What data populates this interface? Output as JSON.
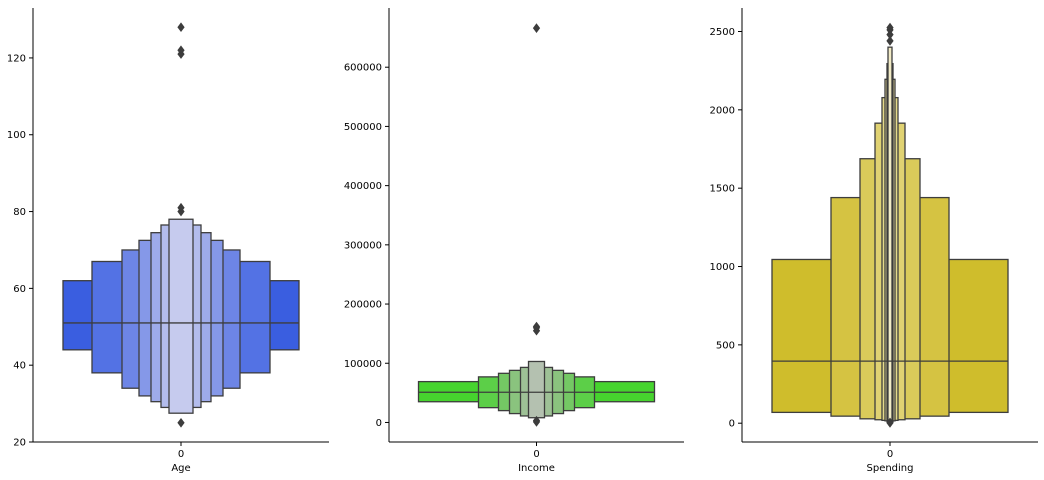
{
  "chart_data": [
    {
      "type": "boxen",
      "xlabel": "Age",
      "categories": [
        "0"
      ],
      "ylim": [
        20,
        133
      ],
      "yticks": [
        20,
        40,
        60,
        80,
        100,
        120
      ],
      "ytick_labels": [
        "20",
        "40",
        "60",
        "80",
        "100",
        "120"
      ],
      "color": "#3050f0",
      "median": 51,
      "boxes": [
        {
          "low": 44,
          "high": 62,
          "fill": "#3a5ee0"
        },
        {
          "low": 38,
          "high": 67,
          "fill": "#5372e4"
        },
        {
          "low": 34,
          "high": 70,
          "fill": "#6d85e6"
        },
        {
          "low": 32,
          "high": 72.5,
          "fill": "#8598e8"
        },
        {
          "low": 30.5,
          "high": 74.5,
          "fill": "#9eabea"
        },
        {
          "low": 29,
          "high": 76.5,
          "fill": "#b3bcec"
        },
        {
          "low": 27.5,
          "high": 78,
          "fill": "#c6cbee"
        }
      ],
      "outliers": [
        25,
        80,
        81,
        121,
        122,
        128
      ]
    },
    {
      "type": "boxen",
      "xlabel": "Income",
      "categories": [
        "0"
      ],
      "ylim": [
        -33000,
        700000
      ],
      "yticks": [
        0,
        100000,
        200000,
        300000,
        400000,
        500000,
        600000
      ],
      "ytick_labels": [
        "0",
        "100000",
        "200000",
        "300000",
        "400000",
        "500000",
        "600000"
      ],
      "color": "#30dd20",
      "median": 51000,
      "boxes": [
        {
          "low": 35000,
          "high": 69000,
          "fill": "#46d42e"
        },
        {
          "low": 25000,
          "high": 77000,
          "fill": "#5ccf48"
        },
        {
          "low": 20000,
          "high": 83000,
          "fill": "#74c864"
        },
        {
          "low": 15000,
          "high": 88000,
          "fill": "#8ac37e"
        },
        {
          "low": 11000,
          "high": 93000,
          "fill": "#9ec196"
        },
        {
          "low": 8000,
          "high": 103000,
          "fill": "#b4c1b0"
        }
      ],
      "outliers": [
        1000,
        3000,
        155000,
        160000,
        162000,
        666000
      ]
    },
    {
      "type": "boxen",
      "xlabel": "Spending",
      "categories": [
        "0"
      ],
      "ylim": [
        -120,
        2650
      ],
      "yticks": [
        0,
        500,
        1000,
        1500,
        2000,
        2500
      ],
      "ytick_labels": [
        "0",
        "500",
        "1000",
        "1500",
        "2000",
        "2500"
      ],
      "color": "#d4c020",
      "median": 396,
      "boxes": [
        {
          "low": 69,
          "high": 1045,
          "fill": "#cfbd2c"
        },
        {
          "low": 45,
          "high": 1440,
          "fill": "#d5c342"
        },
        {
          "low": 28,
          "high": 1688,
          "fill": "#dacb5a"
        },
        {
          "low": 22,
          "high": 1915,
          "fill": "#e0d272"
        },
        {
          "low": 18,
          "high": 2078,
          "fill": "#e5da8a"
        },
        {
          "low": 15,
          "high": 2195,
          "fill": "#ebe1a0"
        },
        {
          "low": 12,
          "high": 2295,
          "fill": "#efe6b4"
        },
        {
          "low": 10,
          "high": 2400,
          "fill": "#f2ebc6"
        }
      ],
      "outliers": [
        2,
        5,
        2440,
        2480,
        2510,
        2525
      ]
    }
  ]
}
